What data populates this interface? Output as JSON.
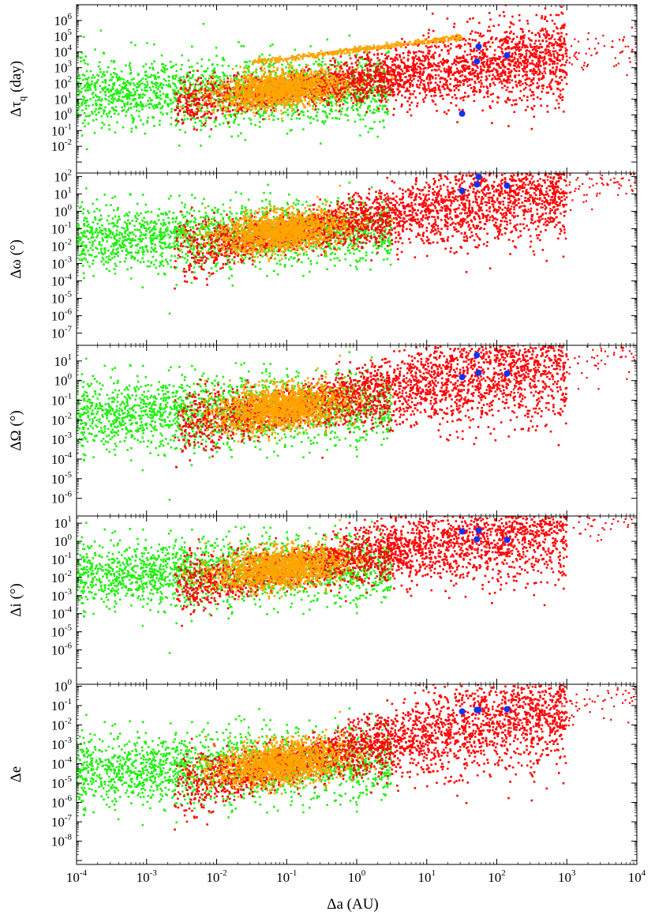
{
  "figure": {
    "x_axis_label": "Δa (AU)",
    "x_ticks": [
      {
        "base": "10",
        "exp": "-4",
        "value": 0.0001
      },
      {
        "base": "10",
        "exp": "-3",
        "value": 0.001
      },
      {
        "base": "10",
        "exp": "-2",
        "value": 0.01
      },
      {
        "base": "10",
        "exp": "-1",
        "value": 0.1
      },
      {
        "base": "10",
        "exp": "0",
        "value": 1
      },
      {
        "base": "10",
        "exp": "1",
        "value": 10
      },
      {
        "base": "10",
        "exp": "2",
        "value": 100
      },
      {
        "base": "10",
        "exp": "3",
        "value": 1000
      },
      {
        "base": "10",
        "exp": "4",
        "value": 10000
      }
    ],
    "colors": {
      "green": "#22ee11",
      "orange": "#ffa500",
      "red": "#ff0000",
      "blue": "#1133ee"
    }
  },
  "chart_data": [
    {
      "type": "scatter",
      "panel": 1,
      "ylabel_main": "Δτ",
      "ylabel_sub": "q",
      "ylabel_tail": " (day)",
      "xlim": [
        0.0001,
        10000
      ],
      "ylim_exp": [
        -3.7,
        7
      ],
      "x_scale": "log",
      "y_scale": "log",
      "y_ticks": [
        {
          "base": "10",
          "exp": "-2",
          "e": -2
        },
        {
          "base": "10",
          "exp": "-1",
          "e": -1
        },
        {
          "base": "10",
          "exp": "0",
          "e": 0
        },
        {
          "base": "10",
          "exp": "1",
          "e": 1
        },
        {
          "base": "10",
          "exp": "2",
          "e": 2
        },
        {
          "base": "10",
          "exp": "3",
          "e": 3
        },
        {
          "base": "10",
          "exp": "4",
          "e": 4
        },
        {
          "base": "10",
          "exp": "5",
          "e": 5
        },
        {
          "base": "10",
          "exp": "6",
          "e": 6
        }
      ],
      "blue_points": [
        [
          32,
          1.2
        ],
        [
          55,
          22000
        ],
        [
          52,
          2500
        ],
        [
          140,
          6000
        ]
      ]
    },
    {
      "type": "scatter",
      "panel": 2,
      "ylabel_main": "Δω",
      "ylabel_sub": "",
      "ylabel_tail": " (°)",
      "xlim": [
        0.0001,
        10000
      ],
      "ylim_exp": [
        -7.7,
        2.2
      ],
      "x_scale": "log",
      "y_scale": "log",
      "y_ticks": [
        {
          "base": "10",
          "exp": "-7",
          "e": -7
        },
        {
          "base": "10",
          "exp": "-6",
          "e": -6
        },
        {
          "base": "10",
          "exp": "-5",
          "e": -5
        },
        {
          "base": "10",
          "exp": "-4",
          "e": -4
        },
        {
          "base": "10",
          "exp": "-3",
          "e": -3
        },
        {
          "base": "10",
          "exp": "-2",
          "e": -2
        },
        {
          "base": "10",
          "exp": "-1",
          "e": -1
        },
        {
          "base": "10",
          "exp": "0",
          "e": 0
        },
        {
          "base": "10",
          "exp": "1",
          "e": 1
        },
        {
          "base": "10",
          "exp": "2",
          "e": 2
        }
      ],
      "blue_points": [
        [
          32,
          15
        ],
        [
          55,
          95
        ],
        [
          52,
          35
        ],
        [
          140,
          30
        ]
      ]
    },
    {
      "type": "scatter",
      "panel": 3,
      "ylabel_main": "ΔΩ",
      "ylabel_sub": "",
      "ylabel_tail": " (°)",
      "xlim": [
        0.0001,
        10000
      ],
      "ylim_exp": [
        -6.9,
        1.8
      ],
      "x_scale": "log",
      "y_scale": "log",
      "y_ticks": [
        {
          "base": "10",
          "exp": "-6",
          "e": -6
        },
        {
          "base": "10",
          "exp": "-5",
          "e": -5
        },
        {
          "base": "10",
          "exp": "-4",
          "e": -4
        },
        {
          "base": "10",
          "exp": "-3",
          "e": -3
        },
        {
          "base": "10",
          "exp": "-2",
          "e": -2
        },
        {
          "base": "10",
          "exp": "-1",
          "e": -1
        },
        {
          "base": "10",
          "exp": "0",
          "e": 0
        },
        {
          "base": "10",
          "exp": "1",
          "e": 1
        }
      ],
      "blue_points": [
        [
          32,
          1.5
        ],
        [
          52,
          20
        ],
        [
          55,
          2.5
        ],
        [
          140,
          2.3
        ]
      ]
    },
    {
      "type": "scatter",
      "panel": 4,
      "ylabel_main": "Δi",
      "ylabel_sub": "",
      "ylabel_tail": " (°)",
      "xlim": [
        0.0001,
        10000
      ],
      "ylim_exp": [
        -7.9,
        1.4
      ],
      "x_scale": "log",
      "y_scale": "log",
      "y_ticks": [
        {
          "base": "10",
          "exp": "-6",
          "e": -6
        },
        {
          "base": "10",
          "exp": "-5",
          "e": -5
        },
        {
          "base": "10",
          "exp": "-4",
          "e": -4
        },
        {
          "base": "10",
          "exp": "-3",
          "e": -3
        },
        {
          "base": "10",
          "exp": "-2",
          "e": -2
        },
        {
          "base": "10",
          "exp": "-1",
          "e": -1
        },
        {
          "base": "10",
          "exp": "0",
          "e": 0
        },
        {
          "base": "10",
          "exp": "1",
          "e": 1
        }
      ],
      "blue_points": [
        [
          32,
          3.5
        ],
        [
          55,
          4
        ],
        [
          52,
          1.3
        ],
        [
          140,
          1.2
        ]
      ]
    },
    {
      "type": "scatter",
      "panel": 5,
      "ylabel_main": "Δe",
      "ylabel_sub": "",
      "ylabel_tail": "",
      "xlim": [
        0.0001,
        10000
      ],
      "ylim_exp": [
        -9.2,
        0.1
      ],
      "x_scale": "log",
      "y_scale": "log",
      "y_ticks": [
        {
          "base": "10",
          "exp": "-8",
          "e": -8
        },
        {
          "base": "10",
          "exp": "-7",
          "e": -7
        },
        {
          "base": "10",
          "exp": "-6",
          "e": -6
        },
        {
          "base": "10",
          "exp": "-5",
          "e": -5
        },
        {
          "base": "10",
          "exp": "-4",
          "e": -4
        },
        {
          "base": "10",
          "exp": "-3",
          "e": -3
        },
        {
          "base": "10",
          "exp": "-2",
          "e": -2
        },
        {
          "base": "10",
          "exp": "-1",
          "e": -1
        },
        {
          "base": "10",
          "exp": "0",
          "e": 0
        }
      ],
      "blue_points": [
        [
          32,
          0.05
        ],
        [
          52,
          0.06
        ],
        [
          55,
          0.06
        ],
        [
          140,
          0.065
        ]
      ]
    }
  ]
}
